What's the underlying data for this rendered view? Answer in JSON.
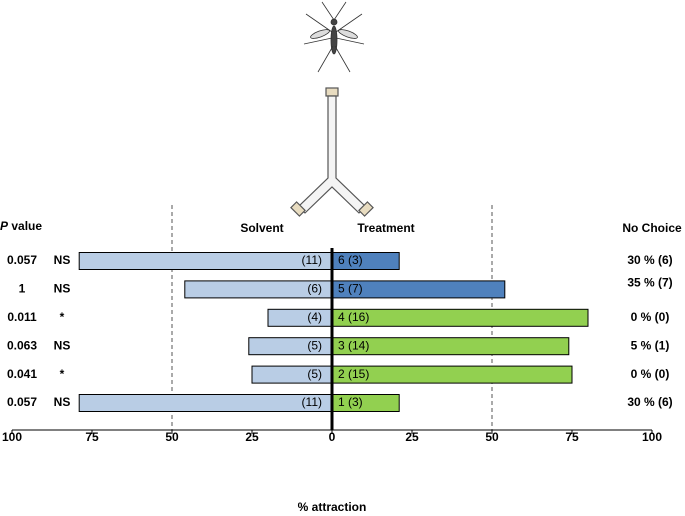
{
  "chart_data": {
    "type": "bar",
    "orientation": "horizontal",
    "p_value_title": "P value",
    "no_choice_title": "No Choice",
    "xlabel": "% attraction",
    "p_values": [
      "0.057",
      "1",
      "0.011",
      "0.063",
      "0.041",
      "0.057"
    ],
    "significance": [
      "NS",
      "NS",
      "*",
      "NS",
      "*",
      "NS"
    ],
    "series": [
      {
        "name": "Solvent",
        "color": "#b9cde5",
        "values": [
          -79,
          -46,
          -20,
          -26,
          -25,
          -79
        ],
        "labels": [
          "(11)",
          "(6)",
          "(4)",
          "(5)",
          "(5)",
          "(11)"
        ]
      },
      {
        "name": "Treatment",
        "colors": [
          "#4f81bd",
          "#4f81bd",
          "#92d050",
          "#92d050",
          "#92d050",
          "#92d050"
        ],
        "values": [
          21,
          54,
          80,
          74,
          75,
          21
        ],
        "labels": [
          "6 (3)",
          "5 (7)",
          "4 (16)",
          "3 (14)",
          "2 (15)",
          "1 (3)"
        ]
      }
    ],
    "no_choice": [
      "30 % (6)",
      "35 % (7)",
      "0 % (0)",
      "5 % (1)",
      "0 % (0)",
      "30 % (6)"
    ],
    "xlim": [
      -100,
      100
    ],
    "xticks": [
      {
        "value": -100,
        "label": "100"
      },
      {
        "value": -75,
        "label": "75"
      },
      {
        "value": -50,
        "label": "50"
      },
      {
        "value": -25,
        "label": "25"
      },
      0,
      25,
      50,
      75,
      100
    ],
    "reference_lines": [
      -50,
      50
    ]
  }
}
